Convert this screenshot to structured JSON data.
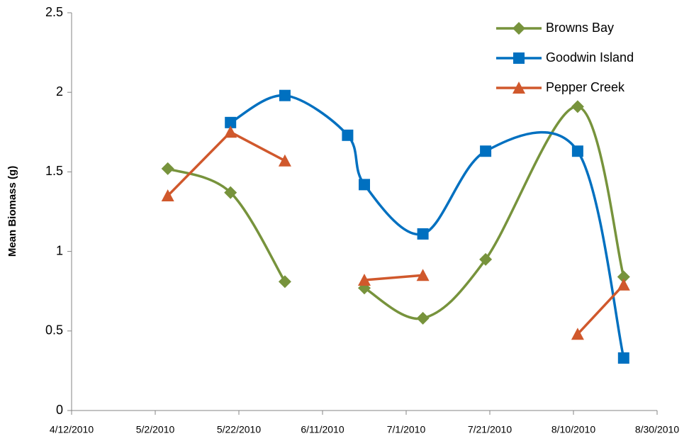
{
  "chart_data": {
    "type": "line",
    "y_label": "Mean Biomass (g)",
    "x": [
      "2010-05-05",
      "2010-05-20",
      "2010-06-02",
      "2010-06-17",
      "2010-06-21",
      "2010-07-05",
      "2010-07-20",
      "2010-08-11",
      "2010-08-22"
    ],
    "series": [
      {
        "name": "Browns Bay",
        "color": "#77933c",
        "marker": "diamond",
        "smooth": true,
        "values": [
          1.52,
          1.37,
          0.81,
          null,
          0.77,
          0.58,
          0.95,
          1.91,
          0.84
        ]
      },
      {
        "name": "Goodwin Island",
        "color": "#0070c0",
        "marker": "square",
        "smooth": true,
        "values": [
          null,
          1.81,
          1.98,
          1.73,
          1.42,
          1.11,
          1.63,
          1.63,
          0.33
        ]
      },
      {
        "name": "Pepper Creek",
        "color": "#d0582c",
        "marker": "triangle",
        "smooth": false,
        "values": [
          1.35,
          1.75,
          1.57,
          null,
          0.82,
          0.85,
          null,
          0.48,
          0.79
        ]
      }
    ],
    "xlim": [
      "2010-04-12",
      "2010-08-30"
    ],
    "xticks": [
      {
        "value": "2010-04-12",
        "label": "4/12/2010"
      },
      {
        "value": "2010-05-02",
        "label": "5/2/2010"
      },
      {
        "value": "2010-05-22",
        "label": "5/22/2010"
      },
      {
        "value": "2010-06-11",
        "label": "6/11/2010"
      },
      {
        "value": "2010-07-01",
        "label": "7/1/2010"
      },
      {
        "value": "2010-07-21",
        "label": "7/21/2010"
      },
      {
        "value": "2010-08-10",
        "label": "8/10/2010"
      },
      {
        "value": "2010-08-30",
        "label": "8/30/2010"
      }
    ],
    "ylim": [
      0,
      2.5
    ],
    "yticks": [
      0,
      0.5,
      1,
      1.5,
      2,
      2.5
    ],
    "grid": false,
    "legend": "top-right"
  }
}
